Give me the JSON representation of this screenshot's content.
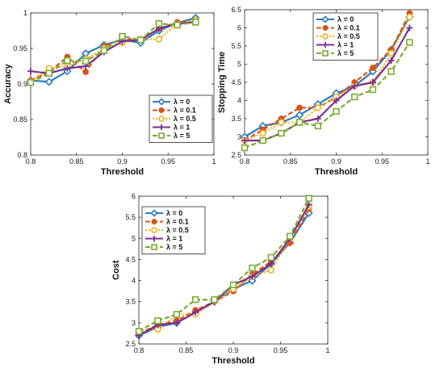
{
  "colors": {
    "lambda_0": "#2d7dbf",
    "lambda_0_1": "#d95319",
    "lambda_0_5": "#edb120",
    "lambda_1": "#7e2f8e",
    "lambda_5": "#77ac30"
  },
  "chart_data": [
    {
      "type": "line",
      "xlabel": "Threshold",
      "ylabel": "Accuracy",
      "xlim": [
        0.8,
        1
      ],
      "ylim": [
        0.8,
        1
      ],
      "xticks": [
        "0.8",
        "0.85",
        "0.9",
        "0.95",
        "1"
      ],
      "yticks": [
        "0.8",
        "0.85",
        "0.9",
        "0.95",
        "1"
      ],
      "legend_position": "bottom-right",
      "grid": false,
      "x": [
        0.8,
        0.82,
        0.84,
        0.86,
        0.88,
        0.9,
        0.92,
        0.94,
        0.96,
        0.98
      ],
      "series": [
        {
          "name": "λ = 0",
          "values": [
            0.905,
            0.903,
            0.918,
            0.943,
            0.955,
            0.962,
            0.958,
            0.975,
            0.986,
            0.993
          ]
        },
        {
          "name": "λ = 0.1",
          "values": [
            0.905,
            0.917,
            0.938,
            0.917,
            0.953,
            0.963,
            0.962,
            0.978,
            0.987,
            0.987
          ]
        },
        {
          "name": "λ = 0.5",
          "values": [
            0.903,
            0.922,
            0.925,
            0.935,
            0.95,
            0.958,
            0.963,
            0.963,
            0.985,
            0.99
          ]
        },
        {
          "name": "λ = 1",
          "values": [
            0.918,
            0.915,
            0.922,
            0.925,
            0.945,
            0.96,
            0.962,
            0.978,
            0.985,
            0.987
          ]
        },
        {
          "name": "λ = 5",
          "values": [
            0.902,
            0.915,
            0.933,
            0.932,
            0.947,
            0.967,
            0.962,
            0.985,
            0.983,
            0.987
          ]
        }
      ]
    },
    {
      "type": "line",
      "xlabel": "Threshold",
      "ylabel": "Stopping Time",
      "xlim": [
        0.8,
        1
      ],
      "ylim": [
        2.5,
        6.5
      ],
      "xticks": [
        "0.8",
        "0.85",
        "0.9",
        "0.95",
        "1"
      ],
      "yticks": [
        "2.5",
        "3",
        "3.5",
        "4",
        "4.5",
        "5",
        "5.5",
        "6",
        "6.5"
      ],
      "legend_position": "top-right",
      "grid": false,
      "x": [
        0.8,
        0.82,
        0.84,
        0.86,
        0.88,
        0.9,
        0.92,
        0.94,
        0.96,
        0.98
      ],
      "series": [
        {
          "name": "λ = 0",
          "values": [
            3.0,
            3.3,
            3.4,
            3.6,
            3.9,
            4.2,
            4.4,
            4.8,
            5.4,
            6.3
          ]
        },
        {
          "name": "λ = 0.1",
          "values": [
            2.9,
            3.2,
            3.5,
            3.8,
            3.8,
            4.1,
            4.5,
            4.9,
            5.4,
            6.4
          ]
        },
        {
          "name": "λ = 0.5",
          "values": [
            2.9,
            3.1,
            3.4,
            3.4,
            3.8,
            4.1,
            4.4,
            4.5,
            5.3,
            6.3
          ]
        },
        {
          "name": "λ = 1",
          "values": [
            2.9,
            2.9,
            3.1,
            3.4,
            3.5,
            4.0,
            4.4,
            4.5,
            5.1,
            6.0
          ]
        },
        {
          "name": "λ = 5",
          "values": [
            2.7,
            2.9,
            3.1,
            3.4,
            3.3,
            3.7,
            4.1,
            4.3,
            4.8,
            5.6
          ]
        }
      ]
    },
    {
      "type": "line",
      "xlabel": "Threshold",
      "ylabel": "Cost",
      "xlim": [
        0.8,
        1
      ],
      "ylim": [
        2.5,
        6
      ],
      "xticks": [
        "0.8",
        "0.85",
        "0.9",
        "0.95",
        "1"
      ],
      "yticks": [
        "2.5",
        "3",
        "3.5",
        "4",
        "4.5",
        "5",
        "5.5",
        "6"
      ],
      "legend_position": "top-left",
      "grid": false,
      "x": [
        0.8,
        0.82,
        0.84,
        0.86,
        0.88,
        0.9,
        0.92,
        0.94,
        0.96,
        0.98
      ],
      "series": [
        {
          "name": "λ = 0",
          "values": [
            2.7,
            2.9,
            3.0,
            3.25,
            3.5,
            3.8,
            4.0,
            4.4,
            4.9,
            5.6
          ]
        },
        {
          "name": "λ = 0.1",
          "values": [
            2.75,
            2.95,
            3.05,
            3.3,
            3.5,
            3.75,
            4.15,
            4.45,
            4.9,
            5.7
          ]
        },
        {
          "name": "λ = 0.5",
          "values": [
            2.8,
            2.85,
            3.2,
            3.2,
            3.5,
            3.8,
            4.1,
            4.25,
            5.0,
            5.75
          ]
        },
        {
          "name": "λ = 1",
          "values": [
            2.7,
            2.95,
            3.0,
            3.25,
            3.5,
            3.9,
            4.1,
            4.4,
            5.0,
            5.8
          ]
        },
        {
          "name": "λ = 5",
          "values": [
            2.8,
            3.05,
            3.2,
            3.55,
            3.55,
            3.9,
            4.3,
            4.55,
            5.05,
            5.95
          ]
        }
      ]
    }
  ]
}
